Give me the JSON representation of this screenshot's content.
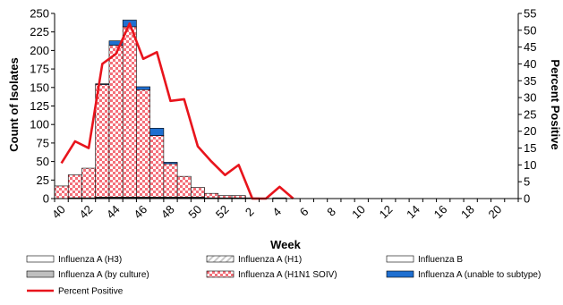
{
  "chart_data": {
    "type": "bar",
    "subtype": "stacked bar with line on secondary axis",
    "xlabel": "Week",
    "ylabel_left": "Count of Isolates",
    "ylabel_right": "Percent Positive",
    "ylim_left": [
      0,
      250
    ],
    "yticks_left": [
      0,
      25,
      50,
      75,
      100,
      125,
      150,
      175,
      200,
      225,
      250
    ],
    "ylim_right": [
      0,
      55
    ],
    "yticks_right": [
      0,
      5,
      10,
      15,
      20,
      25,
      30,
      35,
      40,
      45,
      50,
      55
    ],
    "weeks": [
      "40",
      "41",
      "42",
      "43",
      "44",
      "45",
      "46",
      "47",
      "48",
      "49",
      "50",
      "51",
      "52",
      "1",
      "2",
      "3",
      "4",
      "5",
      "6",
      "7",
      "8",
      "9",
      "10",
      "11",
      "12",
      "13",
      "14",
      "15",
      "16",
      "17",
      "18",
      "19",
      "20",
      "21"
    ],
    "xtick_labels": [
      "40",
      "42",
      "44",
      "46",
      "48",
      "50",
      "52",
      "2",
      "4",
      "6",
      "8",
      "10",
      "12",
      "14",
      "16",
      "18",
      "20"
    ],
    "series": [
      {
        "name": "Influenza A (H3)",
        "color": "#ffffff",
        "pattern": "none",
        "values": [
          0,
          0,
          0,
          0,
          0,
          0,
          0,
          0,
          0,
          0,
          0,
          0,
          0,
          0,
          0,
          0,
          0,
          0,
          0,
          0,
          0,
          0,
          0,
          0,
          0,
          0,
          0,
          0,
          0,
          0,
          0,
          0,
          0,
          0
        ]
      },
      {
        "name": "Influenza A (H1)",
        "color": "#d8d8d8",
        "pattern": "diagonal",
        "values": [
          0,
          0,
          0,
          0,
          0,
          0,
          0,
          0,
          0,
          0,
          0,
          0,
          0,
          0,
          0,
          0,
          0,
          0,
          0,
          0,
          0,
          0,
          0,
          0,
          0,
          0,
          0,
          0,
          0,
          0,
          0,
          0,
          0,
          0
        ]
      },
      {
        "name": "Influenza B",
        "color": "#ffffff",
        "pattern": "none",
        "values": [
          0,
          1,
          1,
          1,
          1,
          1,
          1,
          1,
          1,
          1,
          1,
          1,
          1,
          1,
          1,
          0,
          1,
          0,
          0,
          0,
          0,
          0,
          0,
          0,
          0,
          0,
          0,
          0,
          0,
          0,
          0,
          0,
          0,
          0
        ]
      },
      {
        "name": "Influenza A (by culture)",
        "color": "#bfbfbf",
        "pattern": "solid",
        "values": [
          0,
          0,
          0,
          1,
          1,
          1,
          1,
          1,
          1,
          1,
          1,
          0,
          0,
          0,
          0,
          0,
          0,
          0,
          0,
          0,
          0,
          0,
          0,
          0,
          0,
          0,
          0,
          0,
          0,
          0,
          0,
          0,
          0,
          0
        ]
      },
      {
        "name": "Influenza A (H1N1 SOIV)",
        "color": "#f4707a",
        "pattern": "checker",
        "values": [
          17,
          31,
          40,
          152,
          205,
          230,
          145,
          83,
          45,
          28,
          13,
          6,
          3,
          3,
          0,
          0,
          0,
          0,
          0,
          0,
          0,
          0,
          0,
          0,
          0,
          0,
          0,
          0,
          0,
          0,
          0,
          0,
          0,
          0
        ]
      },
      {
        "name": "Influenza A (unable to subtype)",
        "color": "#1f6fd0",
        "pattern": "solid",
        "values": [
          0,
          0,
          0,
          1,
          6,
          9,
          4,
          10,
          2,
          0,
          0,
          0,
          0,
          0,
          0,
          0,
          0,
          0,
          0,
          0,
          0,
          0,
          0,
          0,
          0,
          0,
          0,
          0,
          0,
          0,
          0,
          0,
          0,
          0
        ]
      }
    ],
    "line": {
      "name": "Percent Positive",
      "color": "#e8141c",
      "axis": "right",
      "values": [
        10.5,
        17,
        15,
        40,
        43,
        52,
        41.5,
        43.5,
        29,
        29.5,
        15.5,
        11,
        7,
        10,
        0,
        0,
        3.5,
        0
      ]
    },
    "legend_placement": "bottom",
    "grid": false
  }
}
